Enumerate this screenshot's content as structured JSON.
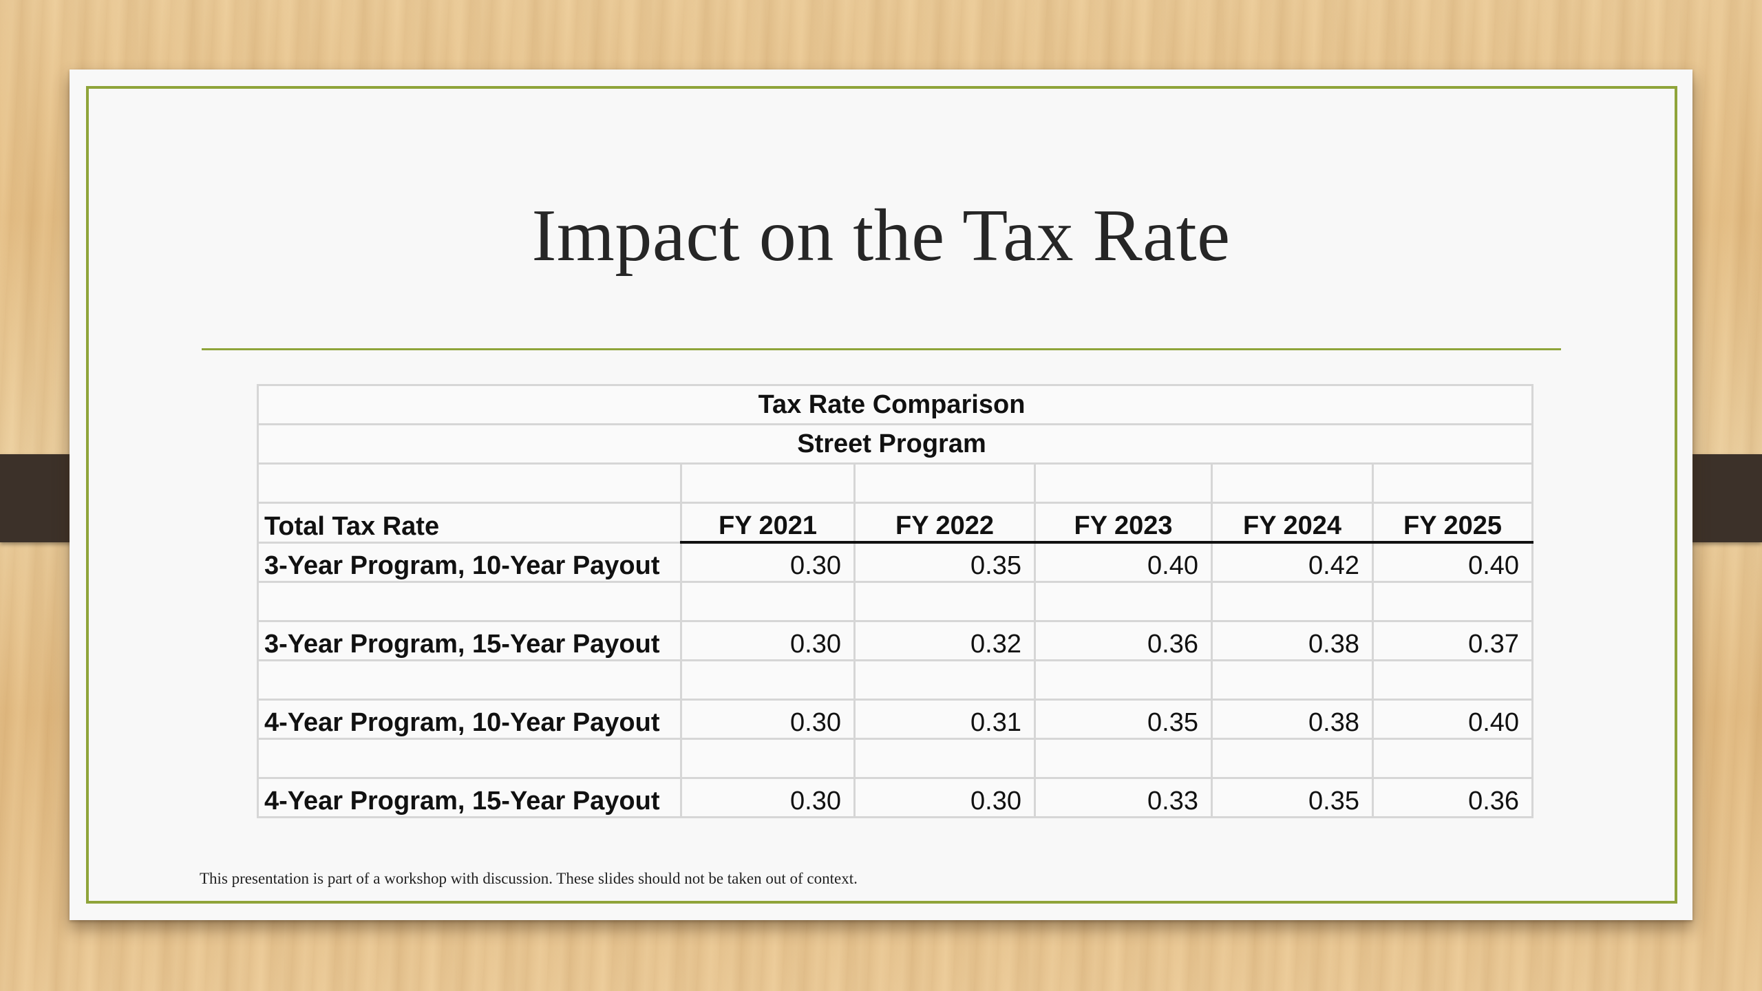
{
  "slide": {
    "title": "Impact on the Tax Rate",
    "footnote": "This presentation is part of a workshop with discussion. These slides should not be taken out of context."
  },
  "table": {
    "title_line_1": "Tax Rate Comparison",
    "title_line_2": "Street Program",
    "header_label": "Total Tax Rate",
    "years": [
      "FY 2021",
      "FY 2022",
      "FY 2023",
      "FY 2024",
      "FY 2025"
    ],
    "rows": [
      {
        "label": "3-Year Program, 10-Year Payout",
        "values": [
          "0.30",
          "0.35",
          "0.40",
          "0.42",
          "0.40"
        ]
      },
      {
        "label": "3-Year Program, 15-Year Payout",
        "values": [
          "0.30",
          "0.32",
          "0.36",
          "0.38",
          "0.37"
        ]
      },
      {
        "label": "4-Year Program, 10-Year Payout",
        "values": [
          "0.30",
          "0.31",
          "0.35",
          "0.38",
          "0.40"
        ]
      },
      {
        "label": "4-Year Program, 15-Year Payout",
        "values": [
          "0.30",
          "0.30",
          "0.33",
          "0.35",
          "0.36"
        ]
      }
    ]
  },
  "colors": {
    "accent": "#8fa43a",
    "slide_background": "#f8f8f8",
    "binder_clip": "#3c3129",
    "text": "#262626"
  }
}
